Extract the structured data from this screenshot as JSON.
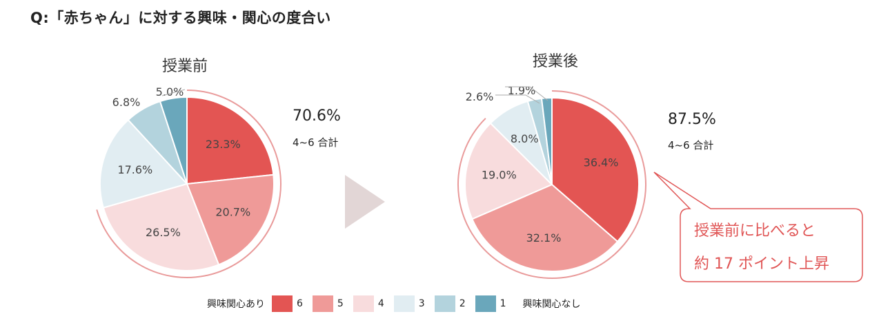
{
  "question": "Q:「赤ちゃん」に対する興味・関心の度合い",
  "chart_data": [
    {
      "type": "pie",
      "title": "授業前",
      "categories": [
        "6",
        "5",
        "4",
        "3",
        "2",
        "1"
      ],
      "values": [
        23.3,
        20.7,
        26.5,
        17.6,
        6.8,
        5.0
      ],
      "labels": [
        "23.3%",
        "20.7%",
        "26.5%",
        "17.6%",
        "6.8%",
        "5.0%"
      ],
      "total_4_6": "70.6%",
      "total_caption": "4~6 合計"
    },
    {
      "type": "pie",
      "title": "授業後",
      "categories": [
        "6",
        "5",
        "4",
        "3",
        "2",
        "1"
      ],
      "values": [
        36.4,
        32.1,
        19.0,
        8.0,
        2.6,
        1.9
      ],
      "labels": [
        "36.4%",
        "32.1%",
        "19.0%",
        "8.0%",
        "2.6%",
        "1.9%"
      ],
      "total_4_6": "87.5%",
      "total_caption": "4~6 合計"
    }
  ],
  "colors": [
    "#e35553",
    "#ef9a98",
    "#f8dcdd",
    "#e1edf2",
    "#b3d3dd",
    "#6aa7bb"
  ],
  "arrow_color": "#e2d6d6",
  "callout": {
    "line1": "授業前に比べると",
    "line2": "約 17 ポイント上昇",
    "color": "#e05555"
  },
  "legend": {
    "left_label": "興味関心あり",
    "right_label": "興味関心なし",
    "items": [
      "6",
      "5",
      "4",
      "3",
      "2",
      "1"
    ]
  }
}
